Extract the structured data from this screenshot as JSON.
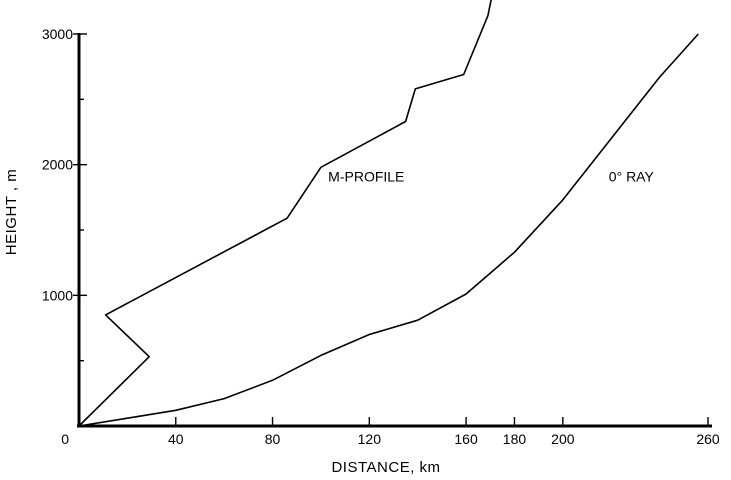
{
  "chart_data": {
    "type": "line",
    "title": "",
    "xlabel": "DISTANCE, km",
    "ylabel": "HEIGHT , m",
    "xlim": [
      0,
      260
    ],
    "ylim": [
      0,
      3000
    ],
    "x_ticks": [
      0,
      40,
      80,
      120,
      160,
      180,
      200,
      260
    ],
    "y_ticks": [
      1000,
      2000,
      3000
    ],
    "y_minor_ticks": [
      500,
      1500,
      2500
    ],
    "grid": false,
    "legend": "none",
    "annotations": [
      {
        "text": "M-PROFILE",
        "x": 103,
        "y": 1870
      },
      {
        "text": "0° RAY",
        "x": 219,
        "y": 1870
      }
    ],
    "series": [
      {
        "id": "m-profile",
        "x": [
          0,
          29,
          11,
          86,
          100,
          135,
          139,
          159,
          169,
          171
        ],
        "y": [
          0,
          530,
          850,
          1590,
          1980,
          2330,
          2580,
          2690,
          3140,
          3320
        ]
      },
      {
        "id": "zero-ray",
        "x": [
          0,
          20,
          40,
          60,
          80,
          100,
          120,
          140,
          160,
          180,
          200,
          220,
          240,
          256
        ],
        "y": [
          0,
          60,
          120,
          210,
          350,
          540,
          700,
          810,
          1010,
          1330,
          1730,
          2200,
          2670,
          3000
        ]
      }
    ]
  }
}
